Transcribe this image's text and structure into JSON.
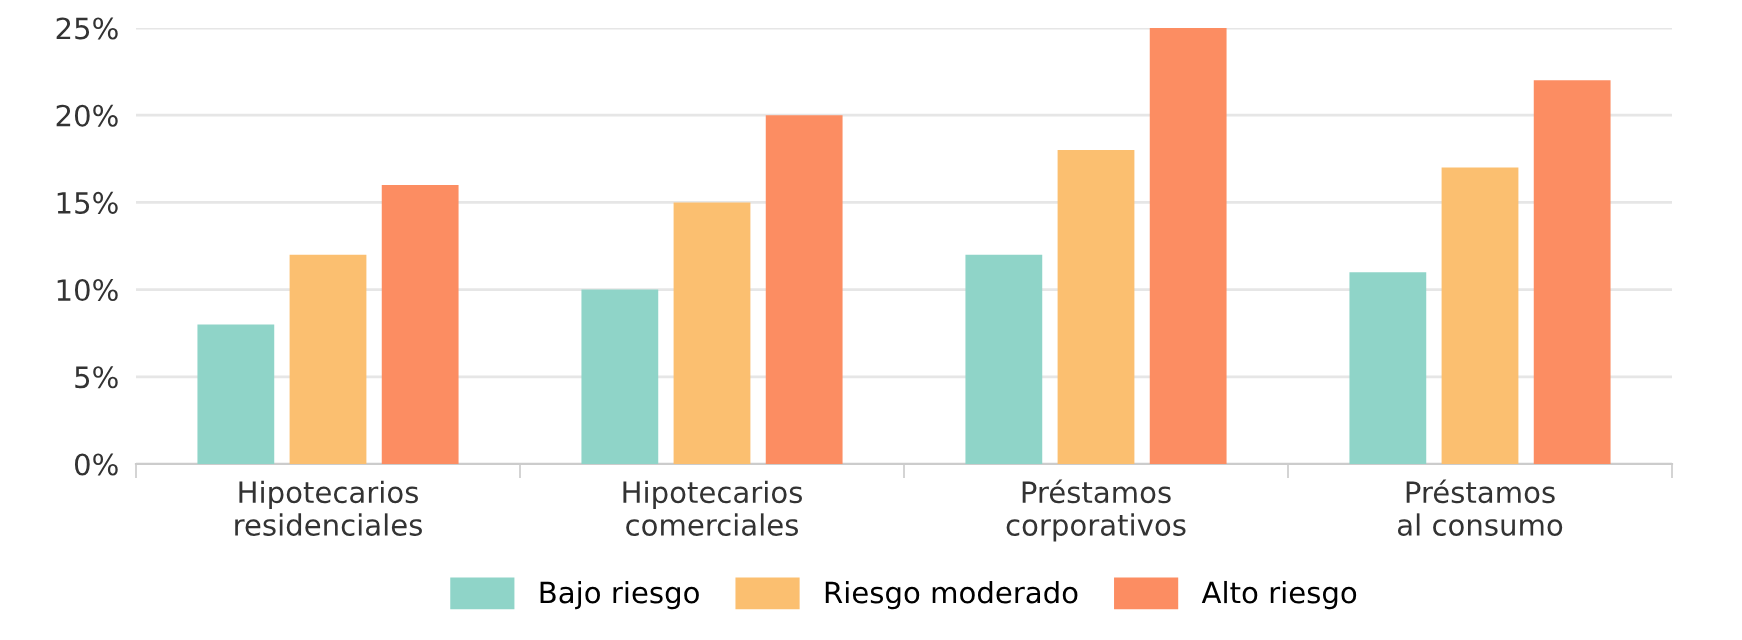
{
  "chart_data": {
    "type": "bar",
    "categories": [
      "Hipotecarios\nresidenciales",
      "Hipotecarios\ncomerciales",
      "Préstamos\ncorporativos",
      "Préstamos\nal consumo"
    ],
    "series": [
      {
        "name": "Bajo riesgo",
        "color": "#8fd4c8",
        "values": [
          8,
          10,
          12,
          11
        ]
      },
      {
        "name": "Riesgo moderado",
        "color": "#fbbf70",
        "values": [
          12,
          15,
          18,
          17
        ]
      },
      {
        "name": "Alto riesgo",
        "color": "#fc8d62",
        "values": [
          16,
          20,
          25,
          22
        ]
      }
    ],
    "ylim": [
      0,
      25
    ],
    "yticks": [
      {
        "value": 0,
        "label": "0%"
      },
      {
        "value": 5,
        "label": "5%"
      },
      {
        "value": 10,
        "label": "10%"
      },
      {
        "value": 15,
        "label": "15%"
      },
      {
        "value": 20,
        "label": "20%"
      },
      {
        "value": 25,
        "label": "25%"
      }
    ],
    "grid": "y",
    "legend": "bottom"
  }
}
